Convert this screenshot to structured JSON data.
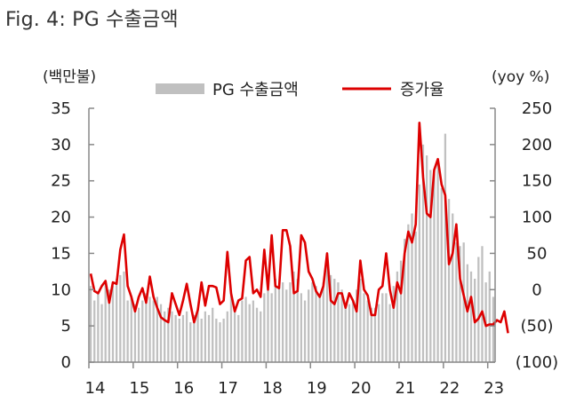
{
  "figure": {
    "title": "Fig. 4: PG 수출금액"
  },
  "chart_data": {
    "type": "bar+line",
    "title": "",
    "left_axis_label": "(백만불)",
    "right_axis_label": "(yoy %)",
    "legend": [
      {
        "name": "PG 수출금액",
        "kind": "bar",
        "color": "#c0c0c0"
      },
      {
        "name": "증가율",
        "kind": "line",
        "color": "#dd0000"
      }
    ],
    "legend_position": "top-center",
    "grid": false,
    "y_left": {
      "min": 0,
      "max": 35,
      "step": 5,
      "tick_labels": [
        "0",
        "5",
        "10",
        "15",
        "20",
        "25",
        "30",
        "35"
      ]
    },
    "y_right": {
      "min": -100,
      "max": 250,
      "step": 50,
      "tick_labels": [
        "(100)",
        "(50)",
        "0",
        "50",
        "100",
        "150",
        "200",
        "250"
      ]
    },
    "x_tick_labels": [
      "14",
      "15",
      "16",
      "17",
      "18",
      "19",
      "20",
      "21",
      "22",
      "23"
    ],
    "x_start": "2014-01",
    "frequency": "monthly",
    "series": [
      {
        "name": "PG 수출금액",
        "axis": "left",
        "values": [
          10.5,
          8.5,
          9.5,
          8.0,
          11.0,
          10.0,
          10.5,
          11.5,
          12.0,
          12.5,
          8.5,
          9.0,
          8.0,
          7.5,
          8.5,
          9.5,
          9.0,
          8.5,
          9.0,
          8.0,
          7.0,
          7.5,
          7.0,
          6.5,
          6.0,
          6.5,
          7.0,
          5.5,
          6.5,
          7.5,
          6.0,
          7.0,
          6.5,
          7.5,
          6.0,
          5.5,
          6.0,
          7.0,
          9.5,
          7.5,
          6.5,
          8.5,
          9.0,
          8.0,
          8.5,
          7.5,
          7.0,
          9.5,
          10.0,
          9.5,
          11.5,
          10.5,
          11.0,
          10.0,
          11.0,
          12.5,
          11.5,
          9.5,
          8.5,
          10.0,
          11.0,
          10.5,
          9.0,
          11.0,
          13.5,
          12.0,
          11.5,
          11.0,
          10.0,
          8.0,
          8.0,
          8.5,
          10.0,
          11.5,
          9.5,
          8.5,
          7.5,
          7.5,
          8.0,
          9.5,
          9.5,
          8.0,
          10.5,
          12.5,
          14.0,
          17.0,
          19.0,
          20.5,
          18.0,
          24.5,
          30.0,
          28.5,
          26.5,
          26.0,
          27.5,
          24.0,
          31.5,
          22.5,
          20.5,
          16.5,
          16.0,
          16.5,
          13.5,
          12.5,
          11.5,
          14.5,
          16.0,
          11.0,
          12.5,
          9.0
        ]
      },
      {
        "name": "증가율",
        "axis": "right",
        "values": [
          22,
          -2,
          -5,
          5,
          12,
          -18,
          10,
          8,
          55,
          76,
          5,
          -10,
          -30,
          -10,
          2,
          -18,
          18,
          -10,
          -25,
          -38,
          -42,
          -45,
          -5,
          -20,
          -35,
          -15,
          8,
          -20,
          -45,
          -28,
          10,
          -22,
          5,
          5,
          3,
          -20,
          -15,
          52,
          -5,
          -30,
          -15,
          -12,
          40,
          45,
          -5,
          0,
          -10,
          55,
          0,
          75,
          5,
          2,
          82,
          82,
          60,
          -5,
          -2,
          75,
          65,
          25,
          15,
          -2,
          -10,
          5,
          50,
          -15,
          -20,
          -5,
          -5,
          -25,
          -5,
          -15,
          -30,
          40,
          0,
          -8,
          -35,
          -35,
          0,
          5,
          50,
          0,
          -25,
          10,
          -5,
          50,
          80,
          65,
          90,
          230,
          155,
          105,
          100,
          165,
          180,
          145,
          130,
          35,
          50,
          90,
          15,
          -8,
          -30,
          -10,
          -45,
          -40,
          -30,
          -50,
          -48,
          -48,
          -42,
          -45,
          -30,
          -60
        ]
      }
    ]
  }
}
